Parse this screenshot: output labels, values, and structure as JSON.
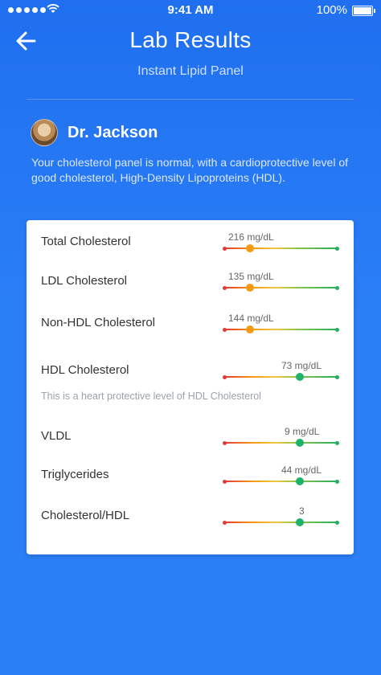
{
  "status": {
    "time": "9:41 AM",
    "battery": "100%"
  },
  "header": {
    "title": "Lab Results",
    "subtitle": "Instant Lipid Panel"
  },
  "doctor": {
    "name": "Dr. Jackson",
    "message": "Your cholesterol panel is normal, with a cardioprotective level of good cholesterol, High-Density Lipoproteins (HDL)."
  },
  "results": [
    {
      "label": "Total Cholesterol",
      "value": "216 mg/dL",
      "level": 0.22,
      "status": "warning"
    },
    {
      "label": "LDL Cholesterol",
      "value": "135 mg/dL",
      "level": 0.22,
      "status": "warning"
    },
    {
      "label": "Non-HDL Cholesterol",
      "value": "144 mg/dL",
      "level": 0.22,
      "status": "warning"
    },
    {
      "label": "HDL Cholesterol",
      "value": "73 mg/dL",
      "level": 0.67,
      "status": "good"
    },
    {
      "label": "VLDL",
      "value": "9 mg/dL",
      "level": 0.67,
      "status": "good"
    },
    {
      "label": "Triglycerides",
      "value": "44 mg/dL",
      "level": 0.67,
      "status": "good"
    },
    {
      "label": "Cholesterol/HDL",
      "value": "3",
      "level": 0.67,
      "status": "good"
    }
  ],
  "hdl_note": "This is a heart protective level of HDL Cholesterol",
  "colors": {
    "warning": "#f39c12",
    "good": "#1fb36a",
    "low": "#e53935",
    "accent": "#2a7ef6"
  }
}
